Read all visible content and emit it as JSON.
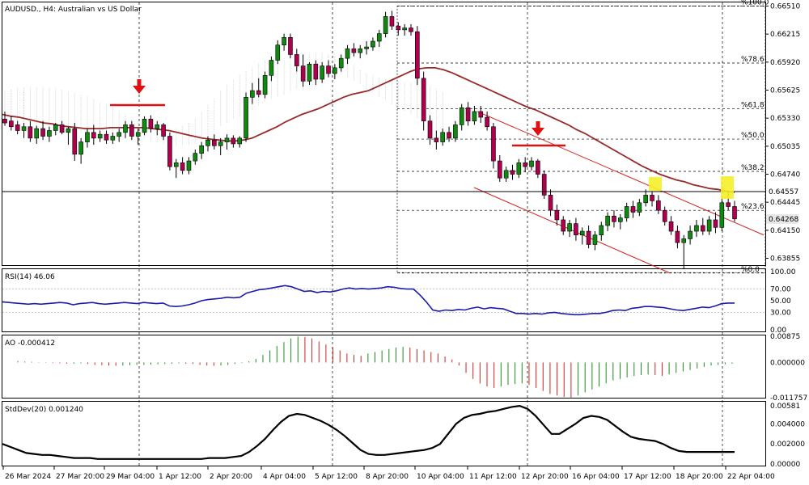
{
  "window": {
    "title": "AUDUSD., H4: Australian vs US Dollar",
    "rsi_title": "RSI(14) 46.06",
    "ao_title": "AO -0.000412",
    "stddev_title": "StdDev(20) 0.001240"
  },
  "colors": {
    "bull_candle": "#0f8a0f",
    "bear_candle": "#b0004d",
    "moving_average": "#9a2a2a",
    "channel": "#d42020",
    "rsi_line": "#1c1caa",
    "ao_up": "#1e8a1e",
    "ao_down": "#d42020",
    "stddev_line": "#000000",
    "marker": "#e01010",
    "highlight": "#f5ee2a"
  },
  "price_axis": {
    "labels": [
      "0.66510",
      "0.66215",
      "0.65920",
      "0.65625",
      "0.65330",
      "0.65035",
      "0.64740",
      "0.64445",
      "0.64150",
      "0.63855"
    ],
    "current_price_tag": "0.64268",
    "horizontal_line_tag": "0.64557"
  },
  "fibonacci": {
    "levels": [
      {
        "label": "%100.0",
        "value": 0.6651
      },
      {
        "label": "%78.6",
        "value": 0.6591
      },
      {
        "label": "%61.8",
        "value": 0.6543
      },
      {
        "label": "%50.0",
        "value": 0.6511
      },
      {
        "label": "%38.2",
        "value": 0.6477
      },
      {
        "label": "%23.6",
        "value": 0.6436
      },
      {
        "label": "%0.0",
        "value": 0.637
      }
    ]
  },
  "rsi_axis": [
    "100.00",
    "70.00",
    "50.00",
    "30.00",
    "0.00"
  ],
  "ao_axis": [
    "0.00875",
    "0.000000",
    "-0.011757"
  ],
  "stddev_axis": [
    "0.00581",
    "0.004000",
    "0.002000",
    "0.00000"
  ],
  "time_axis": [
    "26 Mar 2024",
    "27 Mar 20:00",
    "29 Mar 04:00",
    "1 Apr 12:00",
    "2 Apr 20:00",
    "4 Apr 04:00",
    "5 Apr 12:00",
    "8 Apr 20:00",
    "10 Apr 04:00",
    "11 Apr 12:00",
    "12 Apr 20:00",
    "16 Apr 04:00",
    "17 Apr 12:00",
    "18 Apr 20:00",
    "22 Apr 04:00"
  ],
  "chart_data": {
    "type": "candlestick",
    "symbol": "AUDUSD.",
    "timeframe": "H4",
    "ylim": [
      0.637,
      0.6655
    ],
    "candles": [
      [
        0.6532,
        0.654,
        0.6525,
        0.6528
      ],
      [
        0.653,
        0.6535,
        0.652,
        0.6524
      ],
      [
        0.6526,
        0.653,
        0.6516,
        0.652
      ],
      [
        0.652,
        0.6528,
        0.6512,
        0.6524
      ],
      [
        0.6524,
        0.653,
        0.6508,
        0.6512
      ],
      [
        0.6512,
        0.6525,
        0.6506,
        0.6522
      ],
      [
        0.6522,
        0.653,
        0.651,
        0.6514
      ],
      [
        0.6514,
        0.6524,
        0.6508,
        0.652
      ],
      [
        0.652,
        0.6528,
        0.6515,
        0.6526
      ],
      [
        0.6526,
        0.653,
        0.6516,
        0.6518
      ],
      [
        0.6518,
        0.6524,
        0.6505,
        0.6522
      ],
      [
        0.6522,
        0.6528,
        0.6488,
        0.6495
      ],
      [
        0.6495,
        0.6512,
        0.6485,
        0.6508
      ],
      [
        0.6508,
        0.6522,
        0.6502,
        0.6518
      ],
      [
        0.6518,
        0.6526,
        0.6505,
        0.6512
      ],
      [
        0.6512,
        0.652,
        0.6508,
        0.6516
      ],
      [
        0.6516,
        0.652,
        0.6506,
        0.651
      ],
      [
        0.651,
        0.6518,
        0.6506,
        0.6514
      ],
      [
        0.6514,
        0.6522,
        0.6508,
        0.6518
      ],
      [
        0.6518,
        0.653,
        0.6512,
        0.6526
      ],
      [
        0.6526,
        0.653,
        0.651,
        0.6514
      ],
      [
        0.6514,
        0.6522,
        0.6505,
        0.6518
      ],
      [
        0.6518,
        0.6535,
        0.6515,
        0.6532
      ],
      [
        0.6532,
        0.6536,
        0.6518,
        0.6522
      ],
      [
        0.6522,
        0.653,
        0.6515,
        0.6526
      ],
      [
        0.6526,
        0.6528,
        0.651,
        0.6514
      ],
      [
        0.6514,
        0.6518,
        0.6478,
        0.6482
      ],
      [
        0.6482,
        0.649,
        0.647,
        0.6486
      ],
      [
        0.6486,
        0.6492,
        0.6474,
        0.6478
      ],
      [
        0.6478,
        0.6492,
        0.6474,
        0.6488
      ],
      [
        0.6488,
        0.65,
        0.6484,
        0.6496
      ],
      [
        0.6496,
        0.6508,
        0.649,
        0.6504
      ],
      [
        0.6504,
        0.6514,
        0.6498,
        0.651
      ],
      [
        0.651,
        0.6516,
        0.65,
        0.6504
      ],
      [
        0.6504,
        0.6512,
        0.6494,
        0.6508
      ],
      [
        0.6508,
        0.6516,
        0.65,
        0.6512
      ],
      [
        0.6512,
        0.6515,
        0.6502,
        0.6506
      ],
      [
        0.6506,
        0.6514,
        0.6502,
        0.6512
      ],
      [
        0.6512,
        0.656,
        0.6508,
        0.6555
      ],
      [
        0.6555,
        0.657,
        0.6548,
        0.6562
      ],
      [
        0.6562,
        0.6575,
        0.6555,
        0.6558
      ],
      [
        0.6558,
        0.6582,
        0.6554,
        0.6578
      ],
      [
        0.6578,
        0.6598,
        0.6572,
        0.6594
      ],
      [
        0.6594,
        0.6615,
        0.659,
        0.661
      ],
      [
        0.661,
        0.6622,
        0.6604,
        0.6618
      ],
      [
        0.6618,
        0.6622,
        0.6596,
        0.66
      ],
      [
        0.66,
        0.6606,
        0.6582,
        0.6588
      ],
      [
        0.6588,
        0.66,
        0.6566,
        0.6572
      ],
      [
        0.6572,
        0.6592,
        0.6568,
        0.659
      ],
      [
        0.659,
        0.6594,
        0.6568,
        0.6574
      ],
      [
        0.6574,
        0.6592,
        0.657,
        0.6588
      ],
      [
        0.6588,
        0.6594,
        0.6576,
        0.658
      ],
      [
        0.658,
        0.659,
        0.6574,
        0.6586
      ],
      [
        0.6586,
        0.66,
        0.6582,
        0.6596
      ],
      [
        0.6596,
        0.661,
        0.659,
        0.6606
      ],
      [
        0.6606,
        0.6612,
        0.6598,
        0.6602
      ],
      [
        0.6602,
        0.661,
        0.6596,
        0.6606
      ],
      [
        0.6606,
        0.6614,
        0.66,
        0.6608
      ],
      [
        0.6608,
        0.6618,
        0.6604,
        0.6614
      ],
      [
        0.6614,
        0.6626,
        0.6608,
        0.6622
      ],
      [
        0.6622,
        0.6645,
        0.6618,
        0.664
      ],
      [
        0.664,
        0.6646,
        0.6626,
        0.663
      ],
      [
        0.663,
        0.6634,
        0.662,
        0.6626
      ],
      [
        0.6626,
        0.6632,
        0.662,
        0.6628
      ],
      [
        0.6628,
        0.6632,
        0.662,
        0.6624
      ],
      [
        0.6624,
        0.663,
        0.6568,
        0.6575
      ],
      [
        0.6575,
        0.6582,
        0.652,
        0.653
      ],
      [
        0.653,
        0.6536,
        0.6505,
        0.6512
      ],
      [
        0.6512,
        0.652,
        0.65,
        0.6508
      ],
      [
        0.6508,
        0.6522,
        0.6504,
        0.6518
      ],
      [
        0.6518,
        0.6524,
        0.6508,
        0.6512
      ],
      [
        0.6512,
        0.653,
        0.6508,
        0.6526
      ],
      [
        0.6526,
        0.6548,
        0.652,
        0.6544
      ],
      [
        0.6544,
        0.655,
        0.6525,
        0.653
      ],
      [
        0.653,
        0.6546,
        0.6526,
        0.654
      ],
      [
        0.654,
        0.6546,
        0.6528,
        0.6534
      ],
      [
        0.6534,
        0.654,
        0.652,
        0.6524
      ],
      [
        0.6524,
        0.6528,
        0.648,
        0.6488
      ],
      [
        0.6488,
        0.6494,
        0.6466,
        0.647
      ],
      [
        0.647,
        0.6482,
        0.6466,
        0.6478
      ],
      [
        0.6478,
        0.6484,
        0.6468,
        0.6474
      ],
      [
        0.6474,
        0.649,
        0.647,
        0.6486
      ],
      [
        0.6486,
        0.6492,
        0.6476,
        0.6482
      ],
      [
        0.6482,
        0.6492,
        0.6478,
        0.6488
      ],
      [
        0.6488,
        0.649,
        0.647,
        0.6474
      ],
      [
        0.6474,
        0.6478,
        0.6448,
        0.6452
      ],
      [
        0.6452,
        0.6458,
        0.643,
        0.6436
      ],
      [
        0.6436,
        0.6442,
        0.642,
        0.6426
      ],
      [
        0.6426,
        0.643,
        0.641,
        0.6414
      ],
      [
        0.6414,
        0.6426,
        0.6408,
        0.6422
      ],
      [
        0.6422,
        0.6428,
        0.6404,
        0.641
      ],
      [
        0.641,
        0.6418,
        0.64,
        0.6414
      ],
      [
        0.6414,
        0.642,
        0.6396,
        0.64
      ],
      [
        0.64,
        0.6414,
        0.6394,
        0.641
      ],
      [
        0.641,
        0.6424,
        0.6404,
        0.642
      ],
      [
        0.642,
        0.6434,
        0.6414,
        0.643
      ],
      [
        0.643,
        0.6436,
        0.6418,
        0.6424
      ],
      [
        0.6424,
        0.6432,
        0.6416,
        0.6428
      ],
      [
        0.6428,
        0.6444,
        0.6424,
        0.644
      ],
      [
        0.644,
        0.6446,
        0.6428,
        0.6434
      ],
      [
        0.6434,
        0.6448,
        0.643,
        0.6444
      ],
      [
        0.6444,
        0.6458,
        0.644,
        0.6452
      ],
      [
        0.6452,
        0.6456,
        0.644,
        0.6446
      ],
      [
        0.6446,
        0.6452,
        0.6432,
        0.6436
      ],
      [
        0.6436,
        0.644,
        0.642,
        0.6424
      ],
      [
        0.6424,
        0.643,
        0.641,
        0.6414
      ],
      [
        0.6414,
        0.642,
        0.6396,
        0.6402
      ],
      [
        0.6402,
        0.641,
        0.6374,
        0.6406
      ],
      [
        0.6406,
        0.642,
        0.64,
        0.6414
      ],
      [
        0.6414,
        0.6426,
        0.6408,
        0.642
      ],
      [
        0.642,
        0.6428,
        0.641,
        0.6414
      ],
      [
        0.6414,
        0.643,
        0.641,
        0.6426
      ],
      [
        0.6426,
        0.6434,
        0.6412,
        0.6418
      ],
      [
        0.6418,
        0.6448,
        0.6414,
        0.6444
      ],
      [
        0.6444,
        0.6457,
        0.6436,
        0.644
      ],
      [
        0.644,
        0.6446,
        0.6424,
        0.6427
      ]
    ],
    "moving_average": [
      0.6537,
      0.6535,
      0.6534,
      0.6532,
      0.653,
      0.6528,
      0.6527,
      0.6525,
      0.6524,
      0.6523,
      0.6522,
      0.6522,
      0.6522,
      0.6523,
      0.6523,
      0.6523,
      0.6523,
      0.6523,
      0.6522,
      0.6521,
      0.652,
      0.6518,
      0.6516,
      0.6514,
      0.6512,
      0.6511,
      0.651,
      0.6509,
      0.6509,
      0.651,
      0.6512,
      0.6516,
      0.652,
      0.6524,
      0.6529,
      0.6533,
      0.6537,
      0.654,
      0.6543,
      0.6547,
      0.6551,
      0.6555,
      0.6558,
      0.656,
      0.6562,
      0.6566,
      0.657,
      0.6574,
      0.6578,
      0.6582,
      0.6585,
      0.6586,
      0.6586,
      0.6584,
      0.6581,
      0.6577,
      0.6573,
      0.6569,
      0.6565,
      0.6561,
      0.6557,
      0.6553,
      0.6549,
      0.6545,
      0.6542,
      0.6538,
      0.6534,
      0.653,
      0.6526,
      0.6521,
      0.6517,
      0.6512,
      0.6507,
      0.6502,
      0.6497,
      0.6492,
      0.6487,
      0.6482,
      0.6478,
      0.6474,
      0.6471,
      0.6468,
      0.6466,
      0.6463,
      0.6461,
      0.6459,
      0.6458,
      0.6456,
      0.6455
    ],
    "channel_upper": {
      "from": [
        0.654,
        0.6545
      ],
      "to": [
        0.6418,
        0.6418
      ]
    },
    "channel_lower": {
      "from": [
        0.6465,
        0.6462
      ],
      "to": [
        0.637,
        0.637
      ]
    },
    "rsi": [
      48,
      47,
      46,
      45,
      44,
      45,
      44,
      45,
      46,
      47,
      46,
      43,
      45,
      46,
      47,
      45,
      44,
      45,
      46,
      47,
      46,
      45,
      47,
      46,
      45,
      46,
      41,
      40,
      41,
      43,
      46,
      50,
      52,
      53,
      54,
      56,
      55,
      56,
      63,
      66,
      69,
      70,
      72,
      74,
      76,
      74,
      70,
      66,
      67,
      64,
      66,
      65,
      67,
      70,
      72,
      70,
      71,
      70,
      71,
      72,
      74,
      73,
      71,
      70,
      70,
      60,
      48,
      34,
      32,
      34,
      33,
      35,
      34,
      37,
      39,
      36,
      38,
      37,
      36,
      32,
      28,
      28,
      27,
      28,
      27,
      29,
      30,
      28,
      27,
      26,
      26,
      27,
      28,
      28,
      30,
      33,
      34,
      33,
      37,
      38,
      40,
      40,
      39,
      38,
      36,
      34,
      33,
      35,
      37,
      39,
      38,
      41,
      45,
      46,
      46
    ],
    "ao": [
      0.0005,
      0.0003,
      0.0002,
      0.0001,
      -0.0001,
      -0.0002,
      -0.0003,
      -0.0004,
      -0.0004,
      -0.0003,
      -0.0005,
      -0.0008,
      -0.0009,
      -0.001,
      -0.0011,
      -0.001,
      -0.0009,
      -0.0008,
      -0.0008,
      -0.0007,
      -0.0006,
      -0.0005,
      -0.0004,
      -0.0003,
      -0.0004,
      -0.0005,
      -0.0008,
      -0.001,
      -0.0011,
      -0.001,
      -0.0008,
      -0.0005,
      -0.0002,
      0.0004,
      0.0012,
      0.0025,
      0.004,
      0.0055,
      0.0068,
      0.008,
      0.0086,
      0.0085,
      0.008,
      0.007,
      0.006,
      0.005,
      0.004,
      0.003,
      0.0025,
      0.0022,
      0.003,
      0.0035,
      0.004,
      0.0045,
      0.005,
      0.0052,
      0.005,
      0.0045,
      0.004,
      0.0035,
      0.003,
      0.002,
      0.001,
      -0.001,
      -0.0035,
      -0.0055,
      -0.007,
      -0.008,
      -0.0085,
      -0.008,
      -0.0075,
      -0.0072,
      -0.007,
      -0.0075,
      -0.0085,
      -0.0095,
      -0.0105,
      -0.011,
      -0.0115,
      -0.0117,
      -0.011,
      -0.01,
      -0.009,
      -0.008,
      -0.007,
      -0.006,
      -0.0055,
      -0.005,
      -0.0045,
      -0.0042,
      -0.004,
      -0.0042,
      -0.0045,
      -0.004,
      -0.0035,
      -0.003,
      -0.0025,
      -0.002,
      -0.0015,
      -0.001,
      -0.0008,
      -0.0006,
      -0.0004
    ],
    "stddev": [
      0.002,
      0.0017,
      0.0014,
      0.0011,
      0.001,
      0.0009,
      0.0009,
      0.0008,
      0.0007,
      0.0006,
      0.0006,
      0.0006,
      0.0005,
      0.0005,
      0.0005,
      0.0005,
      0.0005,
      0.0005,
      0.0005,
      0.0005,
      0.0005,
      0.0005,
      0.0005,
      0.0005,
      0.0005,
      0.0005,
      0.0006,
      0.0006,
      0.0006,
      0.0007,
      0.0008,
      0.0012,
      0.0018,
      0.0025,
      0.0034,
      0.0042,
      0.0048,
      0.005,
      0.0049,
      0.0046,
      0.0043,
      0.0039,
      0.0034,
      0.0028,
      0.0021,
      0.0014,
      0.001,
      0.0009,
      0.0009,
      0.001,
      0.0011,
      0.0012,
      0.0013,
      0.0014,
      0.0016,
      0.002,
      0.003,
      0.004,
      0.0046,
      0.0049,
      0.005,
      0.0052,
      0.0053,
      0.0055,
      0.0057,
      0.0058,
      0.0055,
      0.0048,
      0.0039,
      0.003,
      0.003,
      0.0035,
      0.004,
      0.0046,
      0.0048,
      0.0047,
      0.0044,
      0.0038,
      0.0032,
      0.0027,
      0.0025,
      0.0024,
      0.0023,
      0.002,
      0.0016,
      0.0013,
      0.0012,
      0.0012,
      0.0012,
      0.0012,
      0.0012,
      0.0012,
      0.0012
    ]
  }
}
